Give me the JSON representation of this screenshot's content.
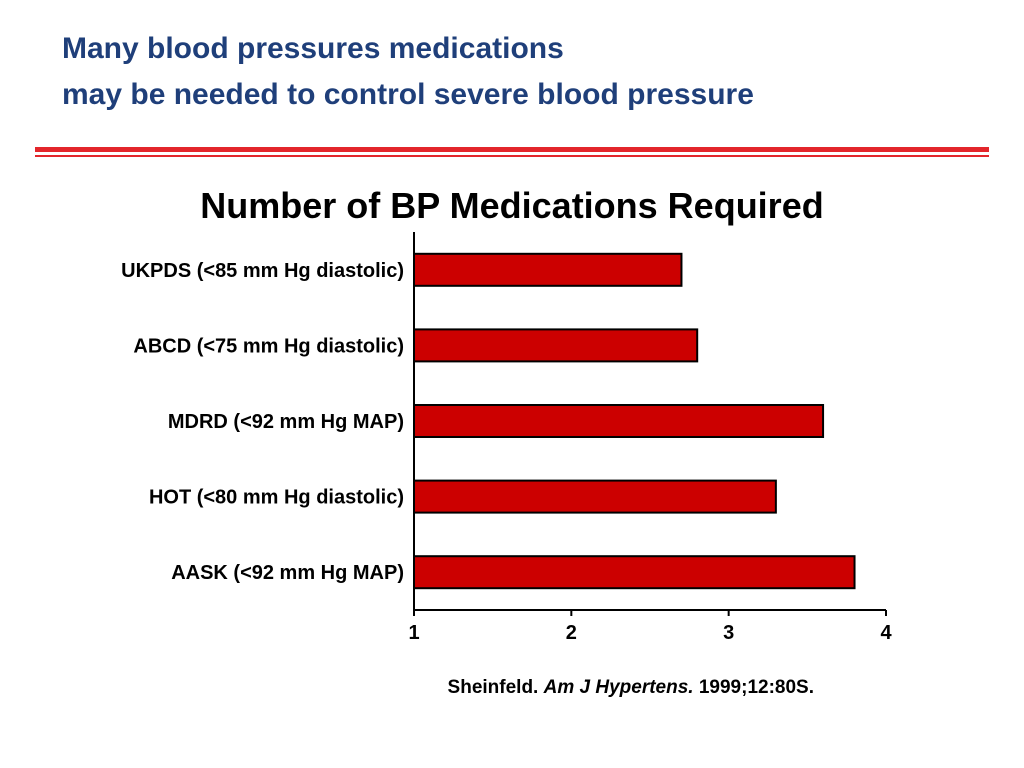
{
  "slide": {
    "title_line1": "Many blood pressures medications",
    "title_line2": "may be needed to control severe blood pressure",
    "title_color": "#1f3f7a",
    "rule_color": "#e3262b"
  },
  "chart_data": {
    "type": "bar",
    "orientation": "horizontal",
    "title": "Number of BP Medications Required",
    "categories": [
      "UKPDS (<85 mm Hg diastolic)",
      "ABCD (<75 mm Hg diastolic)",
      "MDRD (<92 mm Hg MAP)",
      "HOT (<80 mm Hg diastolic)",
      "AASK (<92 mm Hg MAP)"
    ],
    "values": [
      2.7,
      2.8,
      3.6,
      3.3,
      3.8
    ],
    "xlim": [
      1,
      4
    ],
    "xticks": [
      "1",
      "2",
      "3",
      "4"
    ],
    "xlabel": "",
    "ylabel": "",
    "grid": false,
    "bar_color": "#cc0000"
  },
  "citation": {
    "author": "Sheinfeld. ",
    "journal": "Am J Hypertens.",
    "details": " 1999;12:80S."
  }
}
